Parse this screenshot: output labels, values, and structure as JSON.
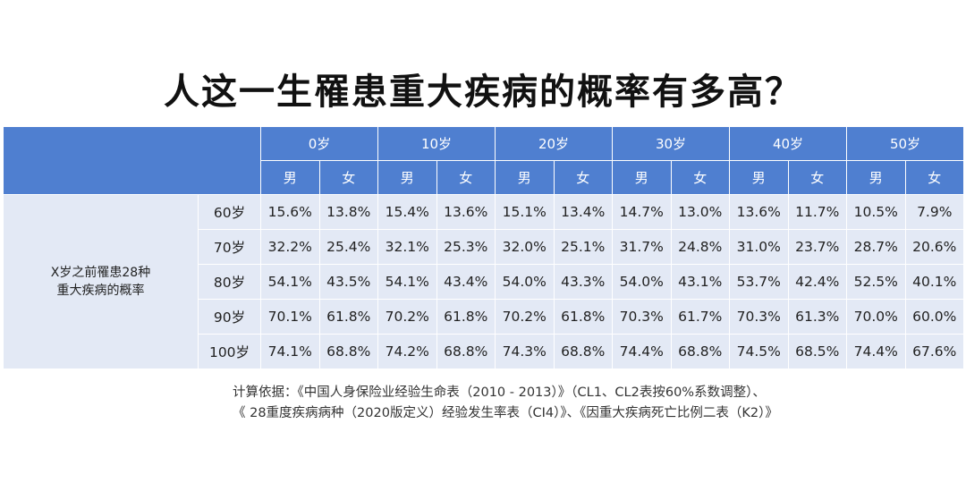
{
  "title": "人这一生罹患重大疾病的概率有多高？",
  "chart_data": {
    "type": "table",
    "row_header": "X岁之前罹患28种重大疾病的概率",
    "row_header_lines": [
      "X岁之前罹患28种",
      "重大疾病的概率"
    ],
    "age_groups": [
      "0岁",
      "10岁",
      "20岁",
      "30岁",
      "40岁",
      "50岁"
    ],
    "sexes": [
      "男",
      "女"
    ],
    "rows": [
      {
        "label": "60岁",
        "values": [
          "15.6%",
          "13.8%",
          "15.4%",
          "13.6%",
          "15.1%",
          "13.4%",
          "14.7%",
          "13.0%",
          "13.6%",
          "11.7%",
          "10.5%",
          "7.9%"
        ]
      },
      {
        "label": "70岁",
        "values": [
          "32.2%",
          "25.4%",
          "32.1%",
          "25.3%",
          "32.0%",
          "25.1%",
          "31.7%",
          "24.8%",
          "31.0%",
          "23.7%",
          "28.7%",
          "20.6%"
        ]
      },
      {
        "label": "80岁",
        "values": [
          "54.1%",
          "43.5%",
          "54.1%",
          "43.4%",
          "54.0%",
          "43.3%",
          "54.0%",
          "43.1%",
          "53.7%",
          "42.4%",
          "52.5%",
          "40.1%"
        ]
      },
      {
        "label": "90岁",
        "values": [
          "70.1%",
          "61.8%",
          "70.2%",
          "61.8%",
          "70.2%",
          "61.8%",
          "70.3%",
          "61.7%",
          "70.3%",
          "61.3%",
          "70.0%",
          "60.0%"
        ]
      },
      {
        "label": "100岁",
        "values": [
          "74.1%",
          "68.8%",
          "74.2%",
          "68.8%",
          "74.3%",
          "68.8%",
          "74.4%",
          "68.8%",
          "74.5%",
          "68.5%",
          "74.4%",
          "67.6%"
        ]
      }
    ]
  },
  "note": {
    "line1": "计算依据：《中国人身保险业经验生命表（2010 - 2013）》（CL1、CL2表按60%系数调整）、",
    "line2": "《 28重度疾病病种（2020版定义）经验发生率表（CI4）》、《因重大疾病死亡比例二表（K2）》"
  },
  "colors": {
    "header": "#4f7fd0",
    "body": "#e3e9f5"
  }
}
